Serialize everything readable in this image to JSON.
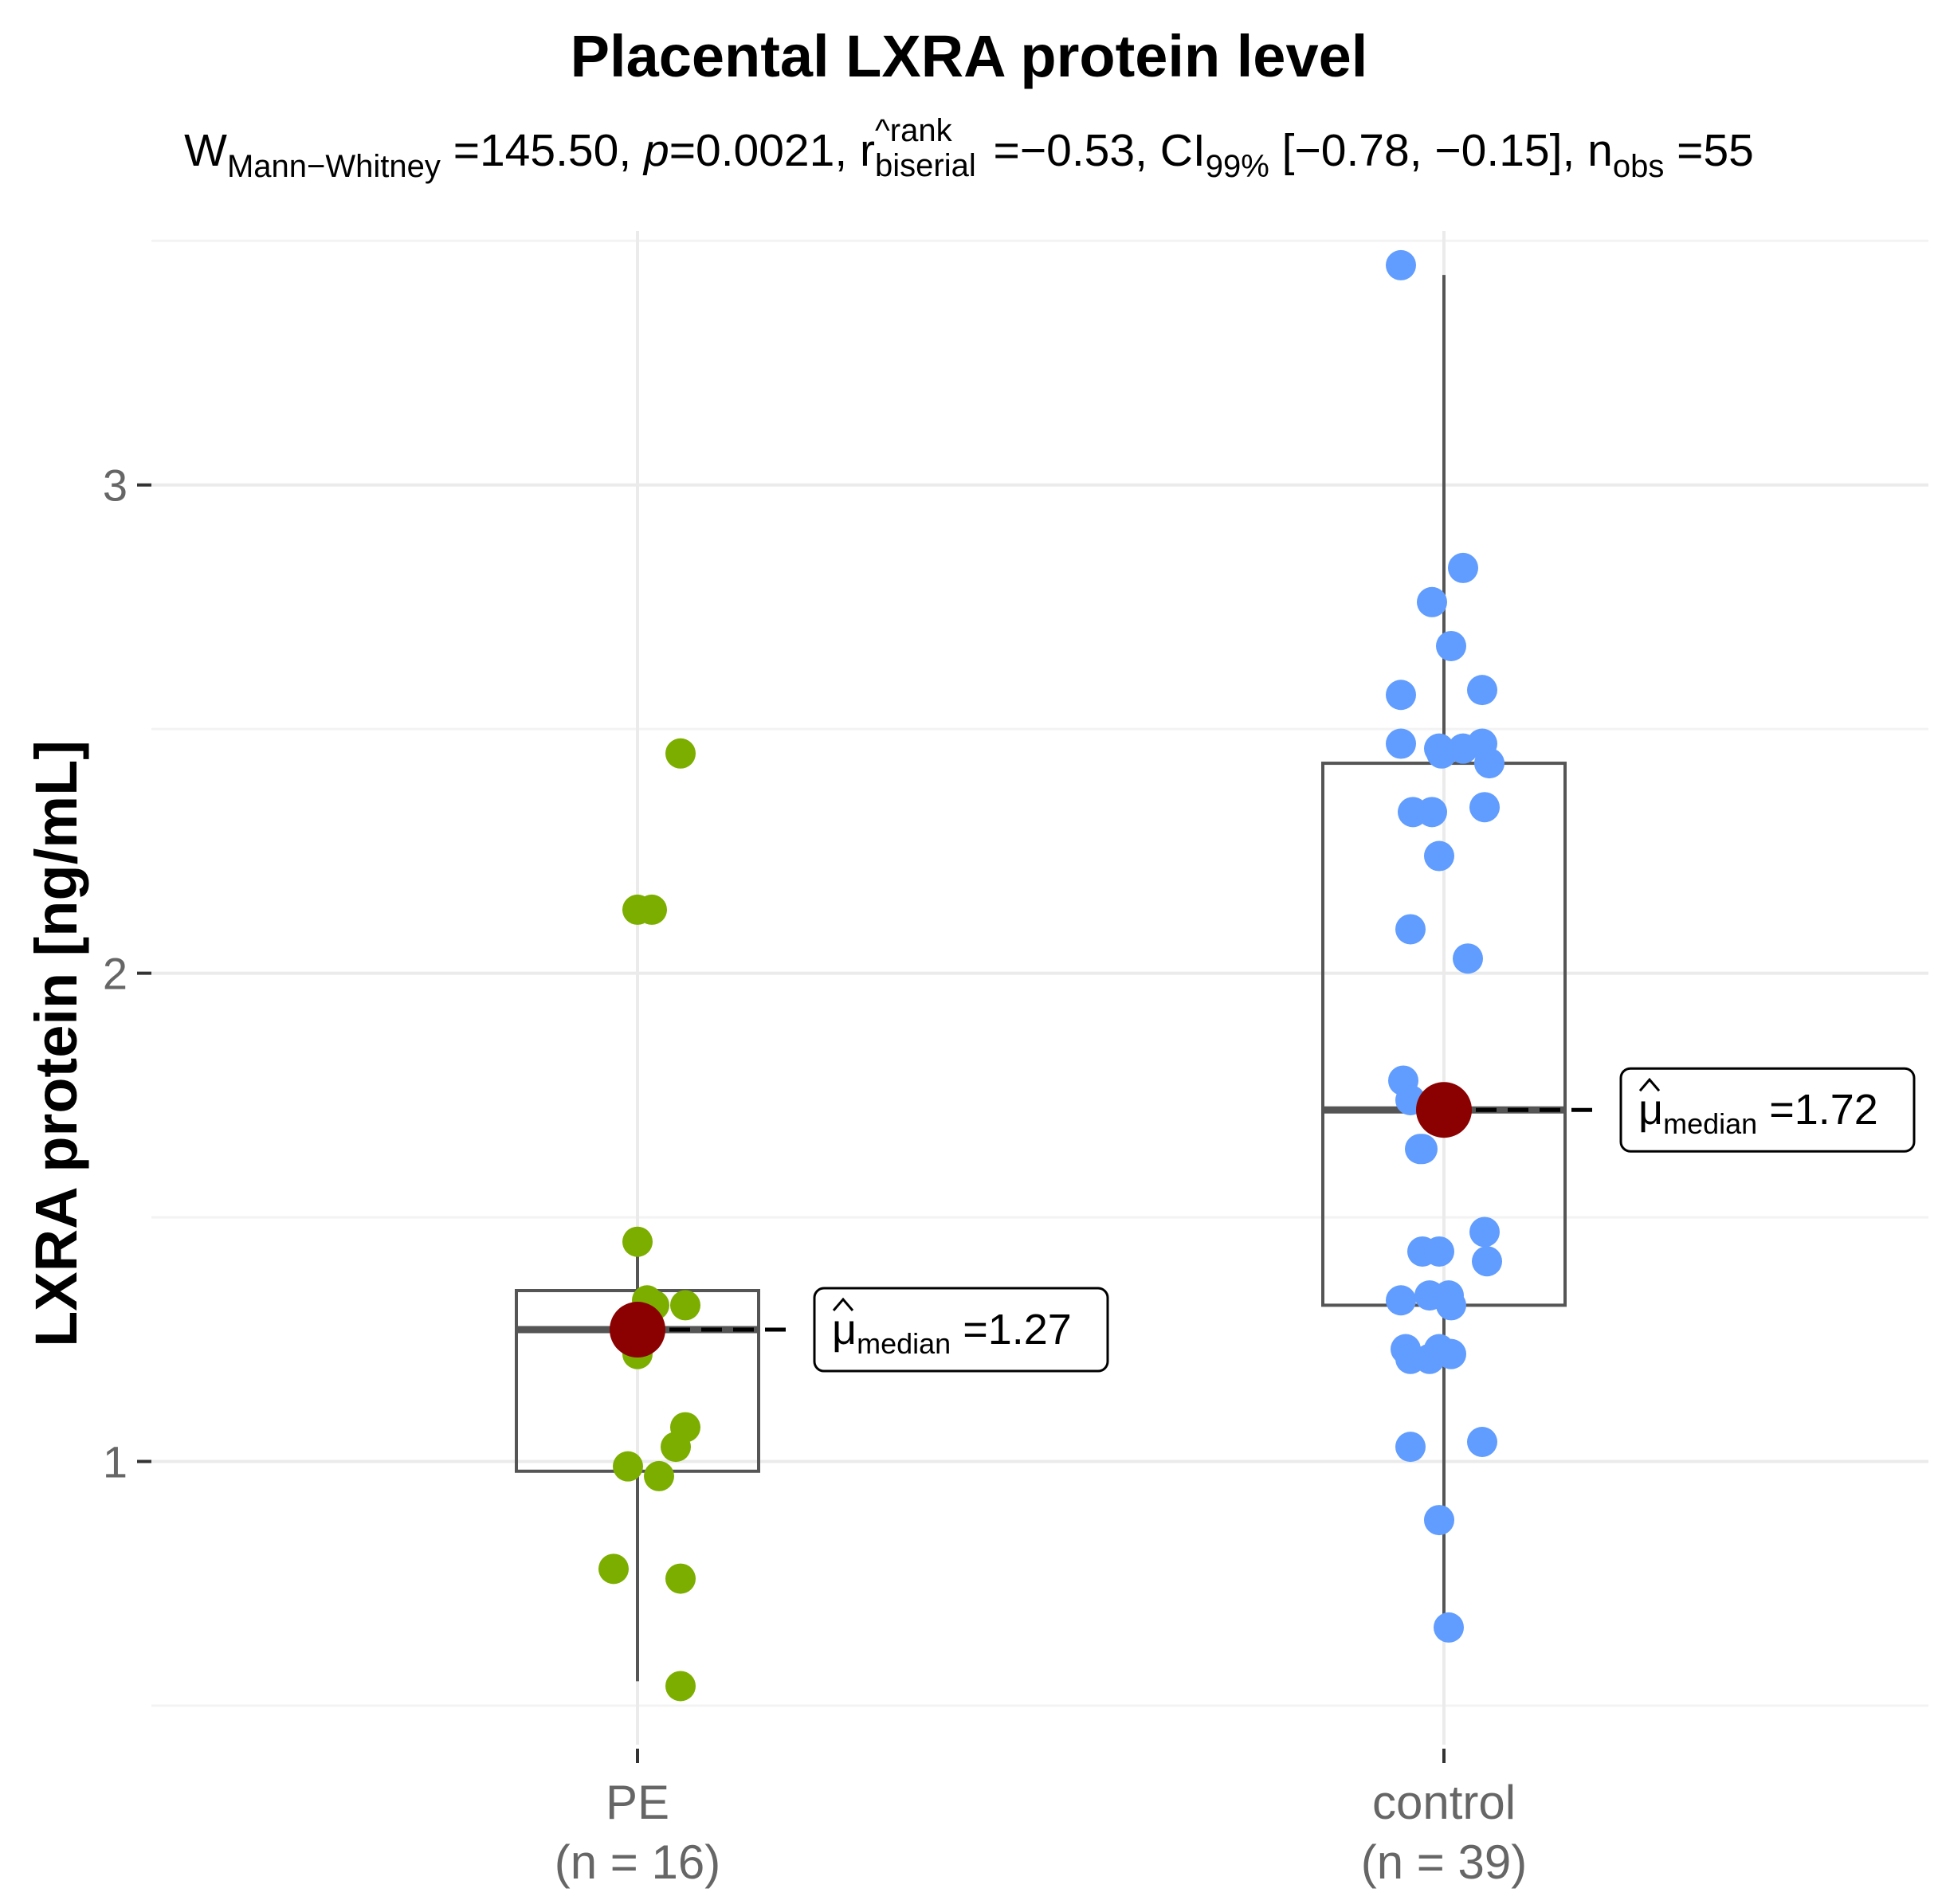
{
  "chart_data": {
    "type": "box",
    "title": "Placental LXRA protein level",
    "subtitle": {
      "w_symbol": "W",
      "w_sub": "Mann−Whitney",
      "w_value": " =145.50, ",
      "p_symbol": "p",
      "p_value": "=0.0021, ",
      "r_symbol": "r",
      "r_sup": "^rank",
      "r_sub": "biserial",
      "r_value": " =−0.53, ",
      "ci_symbol": "CI",
      "ci_sub": "99%",
      "ci_value": " [−0.78, −0.15], ",
      "n_symbol": "n",
      "n_sub": "obs",
      "n_value": " =55"
    },
    "ylabel": "LXRA protein [ng/mL]",
    "ylim": [
      0.42,
      3.52
    ],
    "yticks": [
      1,
      2,
      3
    ],
    "ytick_labels": [
      "1",
      "2",
      "3"
    ],
    "grid": true,
    "groups": [
      {
        "name": "PE",
        "n_label": "(n = 16)",
        "color": "#7CAE00",
        "box": {
          "q1": 0.98,
          "median": 1.27,
          "q3": 1.35,
          "whisker_low": 0.55,
          "whisker_high": 1.42
        },
        "median_label": {
          "mu": "μ",
          "sub": "median",
          "value": " =1.27"
        },
        "points": [
          {
            "jitter": 0.09,
            "y": 2.45
          },
          {
            "jitter": 0.0,
            "y": 2.13
          },
          {
            "jitter": 0.03,
            "y": 2.13
          },
          {
            "jitter": 0.0,
            "y": 1.45
          },
          {
            "jitter": 0.02,
            "y": 1.33
          },
          {
            "jitter": 0.035,
            "y": 1.32
          },
          {
            "jitter": 0.1,
            "y": 1.32
          },
          {
            "jitter": 0.0,
            "y": 1.22
          },
          {
            "jitter": 0.1,
            "y": 1.07
          },
          {
            "jitter": 0.08,
            "y": 1.03
          },
          {
            "jitter": -0.02,
            "y": 0.99
          },
          {
            "jitter": 0.045,
            "y": 0.97
          },
          {
            "jitter": -0.05,
            "y": 0.78
          },
          {
            "jitter": 0.09,
            "y": 0.76
          },
          {
            "jitter": 0.09,
            "y": 0.54
          },
          {
            "jitter": 0.02,
            "y": 1.28
          }
        ]
      },
      {
        "name": "control",
        "n_label": "(n = 39)",
        "color": "#619CFF",
        "box": {
          "q1": 1.32,
          "median": 1.72,
          "q3": 2.43,
          "whisker_low": 0.65,
          "whisker_high": 3.43
        },
        "median_label": {
          "mu": "μ",
          "sub": "median",
          "value": " =1.72"
        },
        "points": [
          {
            "jitter": -0.09,
            "y": 3.45
          },
          {
            "jitter": 0.04,
            "y": 2.83
          },
          {
            "jitter": -0.025,
            "y": 2.76
          },
          {
            "jitter": 0.015,
            "y": 2.67
          },
          {
            "jitter": -0.09,
            "y": 2.57
          },
          {
            "jitter": 0.08,
            "y": 2.58
          },
          {
            "jitter": -0.09,
            "y": 2.47
          },
          {
            "jitter": -0.01,
            "y": 2.46
          },
          {
            "jitter": -0.005,
            "y": 2.45
          },
          {
            "jitter": 0.04,
            "y": 2.46
          },
          {
            "jitter": 0.08,
            "y": 2.47
          },
          {
            "jitter": 0.095,
            "y": 2.43
          },
          {
            "jitter": -0.065,
            "y": 2.33
          },
          {
            "jitter": -0.025,
            "y": 2.33
          },
          {
            "jitter": 0.085,
            "y": 2.34
          },
          {
            "jitter": -0.01,
            "y": 2.24
          },
          {
            "jitter": -0.07,
            "y": 2.09
          },
          {
            "jitter": 0.05,
            "y": 2.03
          },
          {
            "jitter": -0.085,
            "y": 1.78
          },
          {
            "jitter": -0.07,
            "y": 1.74
          },
          {
            "jitter": -0.045,
            "y": 1.64
          },
          {
            "jitter": -0.05,
            "y": 1.64
          },
          {
            "jitter": -0.045,
            "y": 1.43
          },
          {
            "jitter": -0.01,
            "y": 1.43
          },
          {
            "jitter": 0.085,
            "y": 1.47
          },
          {
            "jitter": 0.09,
            "y": 1.41
          },
          {
            "jitter": -0.09,
            "y": 1.33
          },
          {
            "jitter": -0.03,
            "y": 1.34
          },
          {
            "jitter": 0.01,
            "y": 1.34
          },
          {
            "jitter": 0.015,
            "y": 1.32
          },
          {
            "jitter": -0.08,
            "y": 1.23
          },
          {
            "jitter": -0.03,
            "y": 1.21
          },
          {
            "jitter": -0.01,
            "y": 1.23
          },
          {
            "jitter": 0.015,
            "y": 1.22
          },
          {
            "jitter": -0.07,
            "y": 1.03
          },
          {
            "jitter": 0.08,
            "y": 1.04
          },
          {
            "jitter": -0.01,
            "y": 0.88
          },
          {
            "jitter": 0.01,
            "y": 0.66
          },
          {
            "jitter": -0.07,
            "y": 1.21
          }
        ]
      }
    ],
    "median_point_color": "#8B0000"
  }
}
